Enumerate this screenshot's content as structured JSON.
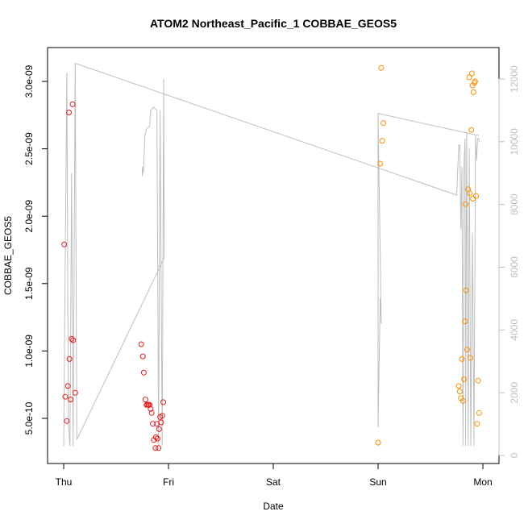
{
  "chart_data": {
    "type": "scatter",
    "title": "ATOM2 Northeast_Pacific_1 COBBAE_GEOS5",
    "xlabel": "Date",
    "ylabel": "COBBAE_GEOS5",
    "x_ticks": [
      "Thu",
      "Fri",
      "Sat",
      "Sun",
      "Mon"
    ],
    "xlim": [
      -0.01,
      4.1
    ],
    "ylim": [
      1.5e-10,
      3.22e-09
    ],
    "y_ticks": [
      5e-10,
      1e-09,
      1.5e-09,
      2e-09,
      2.5e-09,
      3e-09
    ],
    "y_tick_labels": [
      "5.0e-10",
      "1.0e-09",
      "1.5e-09",
      "2.0e-09",
      "2.5e-09",
      "3.0e-09"
    ],
    "y2lim": [
      -200,
      12900
    ],
    "y2_ticks": [
      0,
      2000,
      4000,
      6000,
      8000,
      10000,
      12000
    ],
    "y2_tick_labels": [
      "0",
      "2000",
      "4000",
      "6000",
      "8000",
      "10000",
      "12000"
    ],
    "grid": false,
    "series": [
      {
        "color": "#e31a1c",
        "points": [
          [
            0.005,
            1.79e-09
          ],
          [
            0.015,
            6.6e-10
          ],
          [
            0.03,
            4.8e-10
          ],
          [
            0.04,
            7.4e-10
          ],
          [
            0.05,
            2.77e-09
          ],
          [
            0.055,
            9.4e-10
          ],
          [
            0.065,
            6.4e-10
          ],
          [
            0.075,
            1.09e-09
          ],
          [
            0.085,
            2.83e-09
          ],
          [
            0.09,
            1.08e-09
          ],
          [
            0.11,
            6.9e-10
          ],
          [
            0.74,
            1.05e-09
          ],
          [
            0.755,
            9.6e-10
          ],
          [
            0.765,
            8.4e-10
          ],
          [
            0.78,
            6.4e-10
          ],
          [
            0.79,
            6e-10
          ],
          [
            0.8,
            6e-10
          ],
          [
            0.81,
            6e-10
          ],
          [
            0.82,
            6e-10
          ],
          [
            0.83,
            5.7e-10
          ],
          [
            0.84,
            5.4e-10
          ],
          [
            0.85,
            4.6e-10
          ],
          [
            0.86,
            3.4e-10
          ],
          [
            0.875,
            2.8e-10
          ],
          [
            0.88,
            3.6e-10
          ],
          [
            0.89,
            4.6e-10
          ],
          [
            0.895,
            3.5e-10
          ],
          [
            0.905,
            2.8e-10
          ],
          [
            0.91,
            4.2e-10
          ],
          [
            0.92,
            5.1e-10
          ],
          [
            0.93,
            4.7e-10
          ],
          [
            0.94,
            5.2e-10
          ],
          [
            0.95,
            6.2e-10
          ]
        ]
      },
      {
        "color": "#ff8c00",
        "points": [
          [
            3.0,
            3.2e-10
          ],
          [
            3.02,
            2.39e-09
          ],
          [
            3.03,
            3.1e-09
          ],
          [
            3.04,
            2.56e-09
          ],
          [
            3.05,
            2.69e-09
          ],
          [
            3.77,
            7.4e-10
          ],
          [
            3.78,
            7e-10
          ],
          [
            3.79,
            6.5e-10
          ],
          [
            3.8,
            9.4e-10
          ],
          [
            3.81,
            6.3e-10
          ],
          [
            3.82,
            7.9e-10
          ],
          [
            3.83,
            1.22e-09
          ],
          [
            3.835,
            2.09e-09
          ],
          [
            3.84,
            1.45e-09
          ],
          [
            3.85,
            1.01e-09
          ],
          [
            3.86,
            2.2e-09
          ],
          [
            3.87,
            3.03e-09
          ],
          [
            3.875,
            2.17e-09
          ],
          [
            3.88,
            9.5e-10
          ],
          [
            3.89,
            2.64e-09
          ],
          [
            3.895,
            3.06e-09
          ],
          [
            3.9,
            2.97e-09
          ],
          [
            3.905,
            2.13e-09
          ],
          [
            3.91,
            2.92e-09
          ],
          [
            3.92,
            2.99e-09
          ],
          [
            3.925,
            3e-09
          ],
          [
            3.935,
            2.15e-09
          ],
          [
            3.945,
            4.6e-10
          ],
          [
            3.955,
            7.8e-10
          ],
          [
            3.965,
            5.4e-10
          ]
        ]
      }
    ],
    "altitude_line": {
      "color": "#bfbfbf",
      "axis": "right",
      "points": [
        [
          0.0,
          300
        ],
        [
          0.03,
          12200
        ],
        [
          0.045,
          1000
        ],
        [
          0.06,
          300
        ],
        [
          0.075,
          9000
        ],
        [
          0.09,
          300
        ],
        [
          0.11,
          12500
        ],
        [
          0.125,
          500
        ],
        [
          0.96,
          6300
        ],
        [
          0.955,
          12000
        ],
        [
          0.94,
          300
        ],
        [
          0.92,
          11000
        ],
        [
          0.905,
          300
        ],
        [
          0.89,
          11000
        ],
        [
          0.86,
          11100
        ],
        [
          0.83,
          11000
        ],
        [
          0.82,
          10500
        ],
        [
          0.79,
          10400
        ],
        [
          0.775,
          10200
        ],
        [
          0.76,
          9000
        ],
        [
          0.75,
          9200
        ],
        [
          0.75,
          8900
        ]
      ],
      "extra_segments": [
        [
          [
            0.11,
            12500
          ],
          [
            3.75,
            8300
          ],
          [
            3.77,
            9900
          ],
          [
            3.78,
            9900
          ],
          [
            3.79,
            7200
          ],
          [
            3.8,
            9200
          ],
          [
            3.81,
            300
          ],
          [
            3.82,
            9300
          ],
          [
            3.83,
            10100
          ],
          [
            3.835,
            300
          ],
          [
            3.845,
            10300
          ],
          [
            3.86,
            300
          ],
          [
            3.87,
            9800
          ],
          [
            3.885,
            300
          ],
          [
            3.9,
            7100
          ],
          [
            3.915,
            300
          ],
          [
            3.93,
            10200
          ],
          [
            3.94,
            9400
          ],
          [
            3.95,
            10100
          ],
          [
            3.96,
            10100
          ],
          [
            3.97,
            10000
          ]
        ],
        [
          [
            3.96,
            10200
          ],
          [
            3.0,
            10900
          ],
          [
            3.0,
            900
          ],
          [
            3.02,
            5000
          ],
          [
            3.03,
            4200
          ],
          [
            3.0,
            10900
          ]
        ]
      ]
    }
  }
}
